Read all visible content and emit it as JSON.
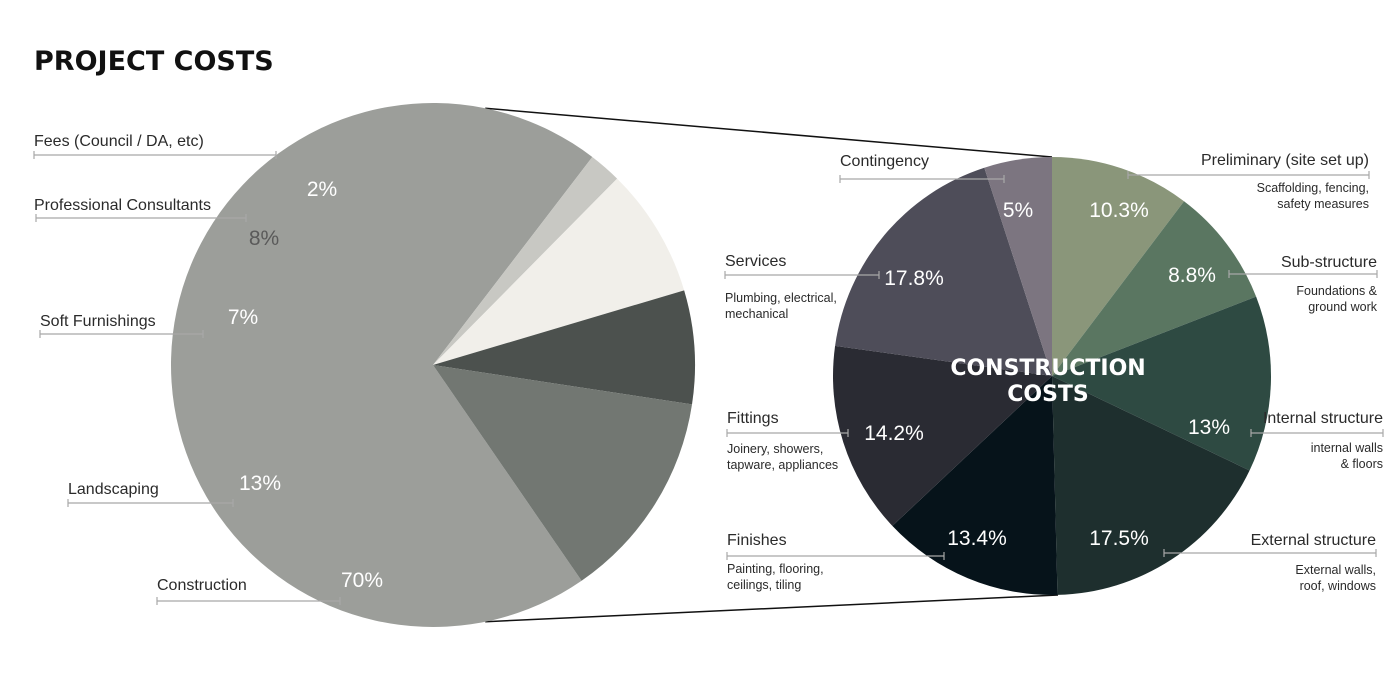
{
  "title": "PROJECT COSTS",
  "chart_data": [
    {
      "type": "pie",
      "title": "",
      "slices": [
        {
          "label": "Construction",
          "value": 70,
          "value_label": "70%",
          "color": "#9c9e9a",
          "text_color": "#ffffff"
        },
        {
          "label": "Fees (Council / DA, etc)",
          "value": 2,
          "value_label": "2%",
          "color": "#c8c8c3",
          "text_color": "#ffffff"
        },
        {
          "label": "Professional Consultants",
          "value": 8,
          "value_label": "8%",
          "color": "#f1efea",
          "text_color": "#5a5a5a"
        },
        {
          "label": "Soft Furnishings",
          "value": 7,
          "value_label": "7%",
          "color": "#4c514e",
          "text_color": "#ffffff"
        },
        {
          "label": "Landscaping",
          "value": 13,
          "value_label": "13%",
          "color": "#727772",
          "text_color": "#ffffff"
        }
      ]
    },
    {
      "type": "pie",
      "title": "CONSTRUCTION COSTS",
      "title_lines": [
        "CONSTRUCTION",
        "COSTS"
      ],
      "slices": [
        {
          "label": "Preliminary (site set up)",
          "description": [
            "Scaffolding, fencing,",
            "safety measures"
          ],
          "value": 10.3,
          "value_label": "10.3%",
          "color": "#8a967a",
          "text_color": "#ffffff"
        },
        {
          "label": "Sub-structure",
          "description": [
            "Foundations &",
            "ground work"
          ],
          "value": 8.8,
          "value_label": "8.8%",
          "color": "#5a7661",
          "text_color": "#ffffff"
        },
        {
          "label": "Internal structure",
          "description": [
            "internal walls",
            "& floors"
          ],
          "value": 13,
          "value_label": "13%",
          "color": "#2e4a42",
          "text_color": "#ffffff"
        },
        {
          "label": "External structure",
          "description": [
            "External walls,",
            "roof, windows"
          ],
          "value": 17.5,
          "value_label": "17.5%",
          "color": "#1e2f2e",
          "text_color": "#ffffff"
        },
        {
          "label": "Finishes",
          "description": [
            "Painting, flooring,",
            "ceilings, tiling"
          ],
          "value": 13.4,
          "value_label": "13.4%",
          "color": "#06131a",
          "text_color": "#ffffff"
        },
        {
          "label": "Fittings",
          "description": [
            "Joinery, showers,",
            "tapware, appliances"
          ],
          "value": 14.2,
          "value_label": "14.2%",
          "color": "#2a2b33",
          "text_color": "#ffffff"
        },
        {
          "label": "Services",
          "description": [
            "Plumbing, electrical,",
            "mechanical"
          ],
          "value": 17.8,
          "value_label": "17.8%",
          "color": "#4e4d59",
          "text_color": "#ffffff"
        },
        {
          "label": "Contingency",
          "description": [],
          "value": 5,
          "value_label": "5%",
          "color": "#7c7580",
          "text_color": "#ffffff"
        }
      ]
    }
  ]
}
